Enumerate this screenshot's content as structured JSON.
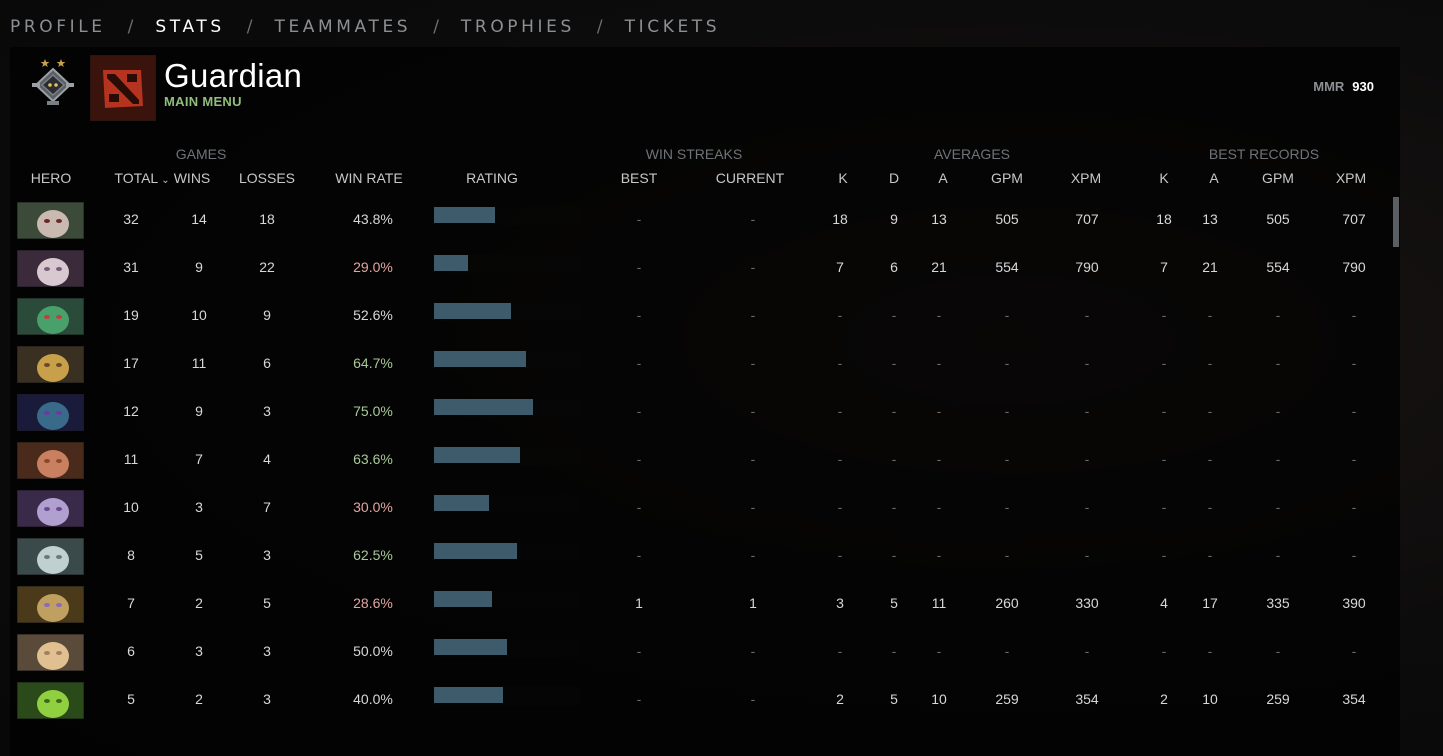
{
  "nav": {
    "tabs": [
      {
        "label": "PROFILE",
        "active": false
      },
      {
        "label": "STATS",
        "active": true
      },
      {
        "label": "TEAMMATES",
        "active": false
      },
      {
        "label": "TROPHIES",
        "active": false
      },
      {
        "label": "TICKETS",
        "active": false
      }
    ],
    "separator": "/"
  },
  "player": {
    "rank": "Guardian",
    "status": "MAIN MENU",
    "mmr_label": "MMR",
    "mmr_value": "930"
  },
  "colors": {
    "accent_green": "#8fbf7a",
    "bar": "#3e5b6b",
    "loss_red": "#e0a6a0",
    "win_green": "#a9c99a"
  },
  "table": {
    "group_headers": {
      "games": "GAMES",
      "win_streaks": "WIN STREAKS",
      "averages": "AVERAGES",
      "best_records": "BEST RECORDS"
    },
    "columns": {
      "hero": "HERO",
      "total": "TOTAL",
      "wins": "WINS",
      "losses": "LOSSES",
      "win_rate": "WIN RATE",
      "rating": "RATING",
      "best": "BEST",
      "current": "CURRENT",
      "k": "K",
      "d": "D",
      "a": "A",
      "gpm": "GPM",
      "xpm": "XPM",
      "rk": "K",
      "ra": "A",
      "rgpm": "GPM",
      "rxpm": "XPM"
    },
    "sort_icon": "chevron-down-icon",
    "rows": [
      {
        "hero_icon": "hero-icon",
        "total": "32",
        "wins": "14",
        "losses": "18",
        "win_rate": "43.8%",
        "wr_class": "neutral",
        "rating_fraction": 0.42,
        "best": "-",
        "current": "-",
        "k": "18",
        "d": "9",
        "a": "13",
        "gpm": "505",
        "xpm": "707",
        "rk": "18",
        "ra": "13",
        "rgpm": "505",
        "rxpm": "707"
      },
      {
        "hero_icon": "hero-icon",
        "total": "31",
        "wins": "9",
        "losses": "22",
        "win_rate": "29.0%",
        "wr_class": "bad",
        "rating_fraction": 0.23,
        "best": "-",
        "current": "-",
        "k": "7",
        "d": "6",
        "a": "21",
        "gpm": "554",
        "xpm": "790",
        "rk": "7",
        "ra": "21",
        "rgpm": "554",
        "rxpm": "790"
      },
      {
        "hero_icon": "hero-icon",
        "total": "19",
        "wins": "10",
        "losses": "9",
        "win_rate": "52.6%",
        "wr_class": "neutral",
        "rating_fraction": 0.53,
        "best": "-",
        "current": "-",
        "k": "-",
        "d": "-",
        "a": "-",
        "gpm": "-",
        "xpm": "-",
        "rk": "-",
        "ra": "-",
        "rgpm": "-",
        "rxpm": "-"
      },
      {
        "hero_icon": "hero-icon",
        "total": "17",
        "wins": "11",
        "losses": "6",
        "win_rate": "64.7%",
        "wr_class": "good",
        "rating_fraction": 0.63,
        "best": "-",
        "current": "-",
        "k": "-",
        "d": "-",
        "a": "-",
        "gpm": "-",
        "xpm": "-",
        "rk": "-",
        "ra": "-",
        "rgpm": "-",
        "rxpm": "-"
      },
      {
        "hero_icon": "hero-icon",
        "total": "12",
        "wins": "9",
        "losses": "3",
        "win_rate": "75.0%",
        "wr_class": "good",
        "rating_fraction": 0.68,
        "best": "-",
        "current": "-",
        "k": "-",
        "d": "-",
        "a": "-",
        "gpm": "-",
        "xpm": "-",
        "rk": "-",
        "ra": "-",
        "rgpm": "-",
        "rxpm": "-"
      },
      {
        "hero_icon": "hero-icon",
        "total": "11",
        "wins": "7",
        "losses": "4",
        "win_rate": "63.6%",
        "wr_class": "good",
        "rating_fraction": 0.59,
        "best": "-",
        "current": "-",
        "k": "-",
        "d": "-",
        "a": "-",
        "gpm": "-",
        "xpm": "-",
        "rk": "-",
        "ra": "-",
        "rgpm": "-",
        "rxpm": "-"
      },
      {
        "hero_icon": "hero-icon",
        "total": "10",
        "wins": "3",
        "losses": "7",
        "win_rate": "30.0%",
        "wr_class": "bad",
        "rating_fraction": 0.38,
        "best": "-",
        "current": "-",
        "k": "-",
        "d": "-",
        "a": "-",
        "gpm": "-",
        "xpm": "-",
        "rk": "-",
        "ra": "-",
        "rgpm": "-",
        "rxpm": "-"
      },
      {
        "hero_icon": "hero-icon",
        "total": "8",
        "wins": "5",
        "losses": "3",
        "win_rate": "62.5%",
        "wr_class": "good",
        "rating_fraction": 0.57,
        "best": "-",
        "current": "-",
        "k": "-",
        "d": "-",
        "a": "-",
        "gpm": "-",
        "xpm": "-",
        "rk": "-",
        "ra": "-",
        "rgpm": "-",
        "rxpm": "-"
      },
      {
        "hero_icon": "hero-icon",
        "total": "7",
        "wins": "2",
        "losses": "5",
        "win_rate": "28.6%",
        "wr_class": "bad",
        "rating_fraction": 0.4,
        "best": "1",
        "current": "1",
        "k": "3",
        "d": "5",
        "a": "11",
        "gpm": "260",
        "xpm": "330",
        "rk": "4",
        "ra": "17",
        "rgpm": "335",
        "rxpm": "390"
      },
      {
        "hero_icon": "hero-icon",
        "total": "6",
        "wins": "3",
        "losses": "3",
        "win_rate": "50.0%",
        "wr_class": "neutral",
        "rating_fraction": 0.5,
        "best": "-",
        "current": "-",
        "k": "-",
        "d": "-",
        "a": "-",
        "gpm": "-",
        "xpm": "-",
        "rk": "-",
        "ra": "-",
        "rgpm": "-",
        "rxpm": "-"
      },
      {
        "hero_icon": "hero-icon",
        "total": "5",
        "wins": "2",
        "losses": "3",
        "win_rate": "40.0%",
        "wr_class": "neutral",
        "rating_fraction": 0.47,
        "best": "-",
        "current": "-",
        "k": "2",
        "d": "5",
        "a": "10",
        "gpm": "259",
        "xpm": "354",
        "rk": "2",
        "ra": "10",
        "rgpm": "259",
        "rxpm": "354"
      }
    ]
  }
}
